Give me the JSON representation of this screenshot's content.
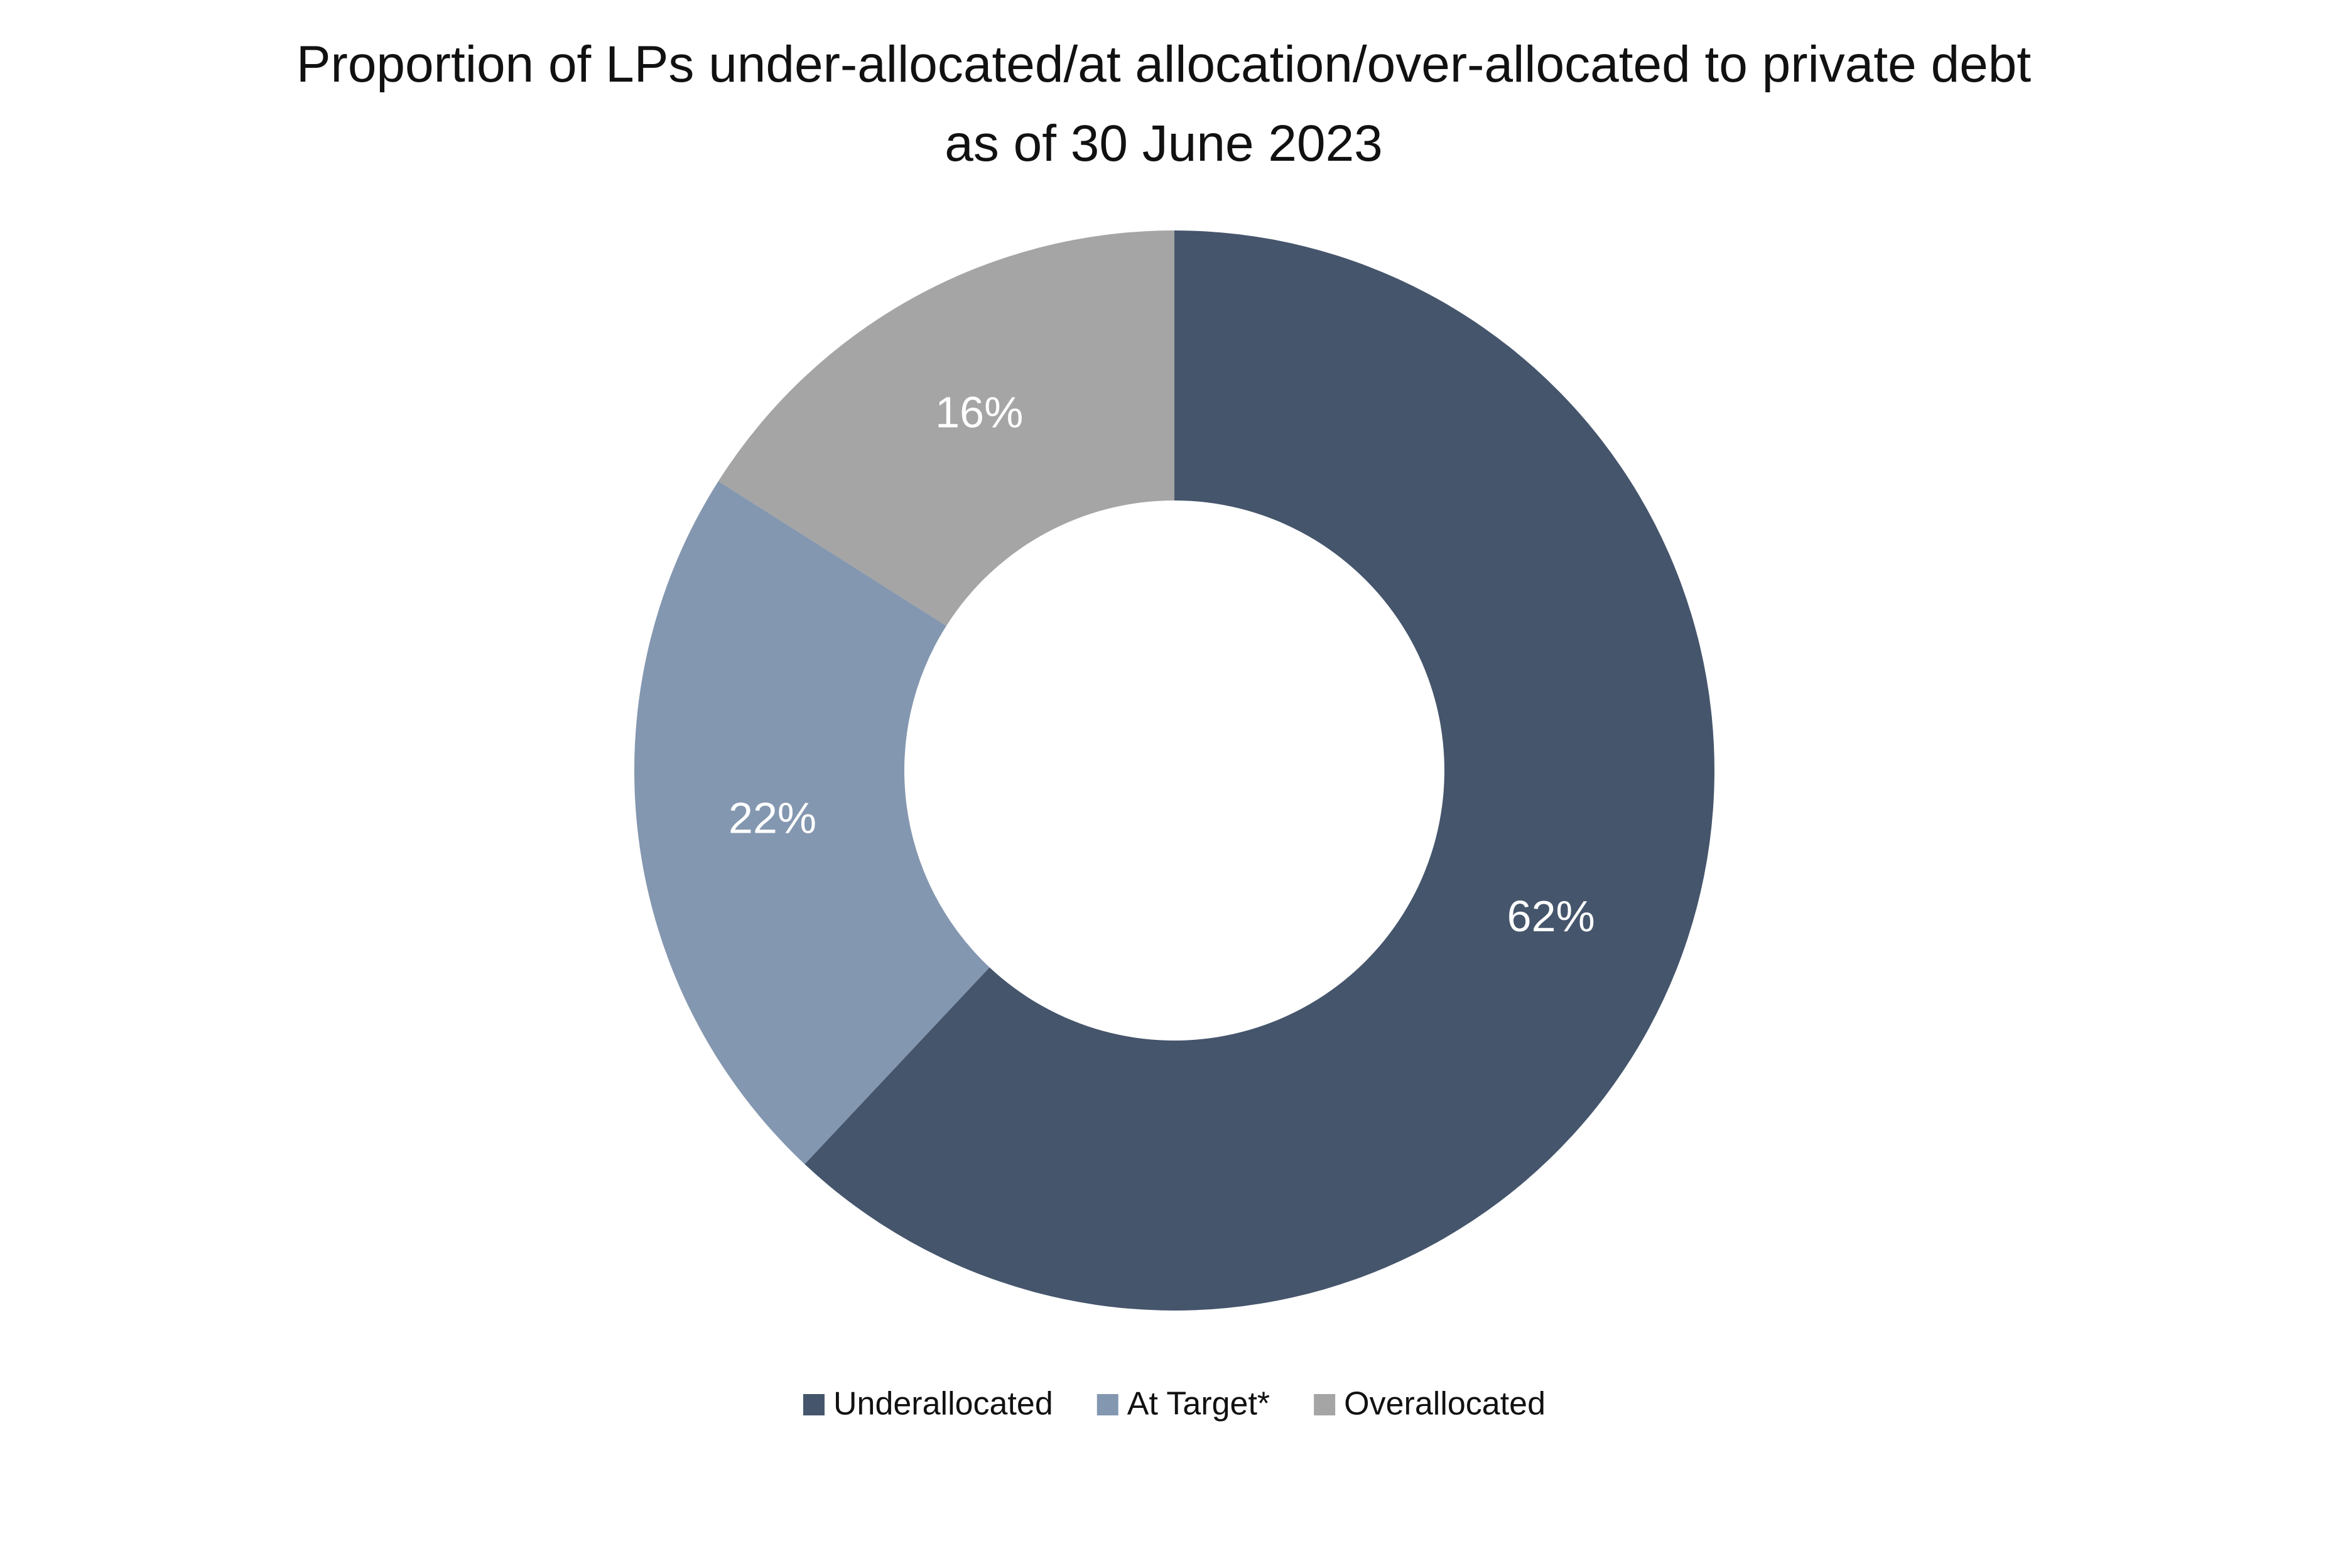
{
  "chart_data": {
    "type": "donut",
    "title": "Proportion of LPs under-allocated/at allocation/over-allocated to private debt as of 30 June 2023",
    "categories": [
      "Underallocated",
      "At Target*",
      "Overallocated"
    ],
    "values": [
      62,
      22,
      16
    ],
    "value_labels": [
      "62%",
      "22%",
      "16%"
    ],
    "colors": [
      "#45556c",
      "#8497b0",
      "#a5a5a5"
    ],
    "legend": "bottom"
  }
}
